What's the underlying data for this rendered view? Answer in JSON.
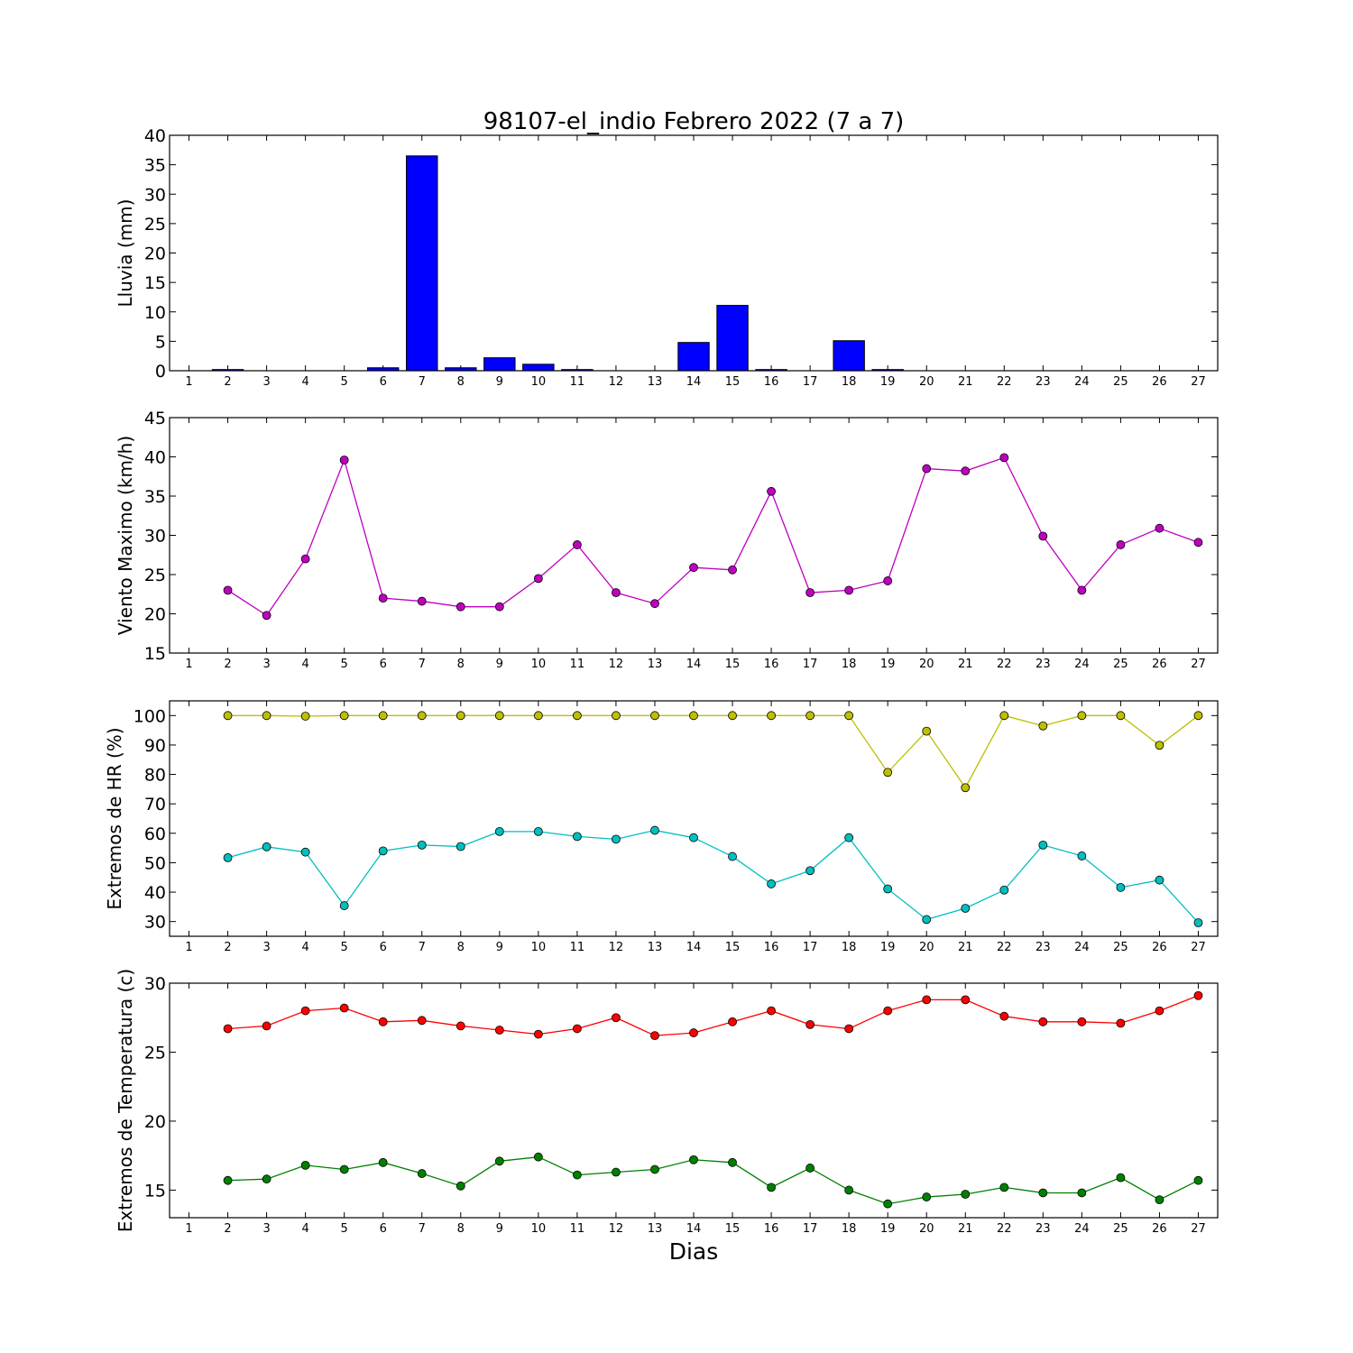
{
  "figure": {
    "title": "98107-el_indio Febrero 2022  (7 a 7)",
    "xlabel": "Dias"
  },
  "chart_data": [
    {
      "type": "bar",
      "ylabel": "Lluvia (mm)",
      "ylim": [
        0,
        40
      ],
      "yticks": [
        0,
        5,
        10,
        15,
        20,
        25,
        30,
        35,
        40
      ],
      "xlim": [
        0.5,
        27.5
      ],
      "xticks": [
        1,
        2,
        3,
        4,
        5,
        6,
        7,
        8,
        9,
        10,
        11,
        12,
        13,
        14,
        15,
        16,
        17,
        18,
        19,
        20,
        21,
        22,
        23,
        24,
        25,
        26,
        27
      ],
      "series": [
        {
          "color": "#0000ff",
          "x": [
            2,
            3,
            4,
            5,
            6,
            7,
            8,
            9,
            10,
            11,
            12,
            13,
            14,
            15,
            16,
            17,
            18,
            19,
            20,
            21,
            22,
            23,
            24,
            25,
            26,
            27
          ],
          "values": [
            0.2,
            0,
            0,
            0,
            0.5,
            36.5,
            0.5,
            2.2,
            1.1,
            0.2,
            0,
            0,
            4.8,
            11.1,
            0.2,
            0,
            5.1,
            0.2,
            0,
            0,
            0,
            0,
            0,
            0,
            0,
            0
          ]
        }
      ]
    },
    {
      "type": "line",
      "ylabel": "Viento Maximo (km/h)",
      "ylim": [
        15,
        45
      ],
      "yticks": [
        15,
        20,
        25,
        30,
        35,
        40,
        45
      ],
      "xlim": [
        0.5,
        27.5
      ],
      "xticks": [
        1,
        2,
        3,
        4,
        5,
        6,
        7,
        8,
        9,
        10,
        11,
        12,
        13,
        14,
        15,
        16,
        17,
        18,
        19,
        20,
        21,
        22,
        23,
        24,
        25,
        26,
        27
      ],
      "series": [
        {
          "color": "#bf00bf",
          "x": [
            2,
            3,
            4,
            5,
            6,
            7,
            8,
            9,
            10,
            11,
            12,
            13,
            14,
            15,
            16,
            17,
            18,
            19,
            20,
            21,
            22,
            23,
            24,
            25,
            26,
            27
          ],
          "values": [
            23.0,
            19.8,
            27.0,
            39.6,
            22.0,
            21.6,
            20.9,
            20.9,
            24.5,
            28.8,
            22.7,
            21.3,
            25.9,
            25.6,
            35.6,
            22.7,
            23.0,
            24.2,
            38.5,
            38.2,
            39.9,
            29.9,
            23.0,
            28.8,
            30.9,
            29.1
          ]
        }
      ]
    },
    {
      "type": "line",
      "ylabel": "Extremos de HR (%)",
      "ylim": [
        25,
        105
      ],
      "yticks": [
        30,
        40,
        50,
        60,
        70,
        80,
        90,
        100
      ],
      "xlim": [
        0.5,
        27.5
      ],
      "xticks": [
        1,
        2,
        3,
        4,
        5,
        6,
        7,
        8,
        9,
        10,
        11,
        12,
        13,
        14,
        15,
        16,
        17,
        18,
        19,
        20,
        21,
        22,
        23,
        24,
        25,
        26,
        27
      ],
      "series": [
        {
          "color": "#bfbf00",
          "x": [
            2,
            3,
            4,
            5,
            6,
            7,
            8,
            9,
            10,
            11,
            12,
            13,
            14,
            15,
            16,
            17,
            18,
            19,
            20,
            21,
            22,
            23,
            24,
            25,
            26,
            27
          ],
          "values": [
            100,
            100,
            99.8,
            100,
            100,
            100,
            100,
            100,
            100,
            100,
            100,
            100,
            100,
            100,
            100,
            100,
            100,
            80.7,
            94.7,
            75.5,
            100,
            96.5,
            100,
            100,
            89.9,
            100
          ]
        },
        {
          "color": "#00bfbf",
          "x": [
            2,
            3,
            4,
            5,
            6,
            7,
            8,
            9,
            10,
            11,
            12,
            13,
            14,
            15,
            16,
            17,
            18,
            19,
            20,
            21,
            22,
            23,
            24,
            25,
            26,
            27
          ],
          "values": [
            51.7,
            55.4,
            53.6,
            35.4,
            54.0,
            56.0,
            55.5,
            60.6,
            60.6,
            58.9,
            58.0,
            61.0,
            58.5,
            52.1,
            42.8,
            47.3,
            58.5,
            41.1,
            30.7,
            34.5,
            40.7,
            56.0,
            52.3,
            41.6,
            44.1,
            29.6
          ]
        }
      ]
    },
    {
      "type": "line",
      "ylabel": "Extremos de Temperatura (c)",
      "ylim": [
        13,
        30
      ],
      "yticks": [
        15,
        20,
        25,
        30
      ],
      "xlim": [
        0.5,
        27.5
      ],
      "xticks": [
        1,
        2,
        3,
        4,
        5,
        6,
        7,
        8,
        9,
        10,
        11,
        12,
        13,
        14,
        15,
        16,
        17,
        18,
        19,
        20,
        21,
        22,
        23,
        24,
        25,
        26,
        27
      ],
      "series": [
        {
          "color": "#ff0000",
          "x": [
            2,
            3,
            4,
            5,
            6,
            7,
            8,
            9,
            10,
            11,
            12,
            13,
            14,
            15,
            16,
            17,
            18,
            19,
            20,
            21,
            22,
            23,
            24,
            25,
            26,
            27
          ],
          "values": [
            26.7,
            26.9,
            28.0,
            28.2,
            27.2,
            27.3,
            26.9,
            26.6,
            26.3,
            26.7,
            27.5,
            26.2,
            26.4,
            27.2,
            28.0,
            27.0,
            26.7,
            28.0,
            28.8,
            28.8,
            27.6,
            27.2,
            27.2,
            27.1,
            28.0,
            29.1
          ]
        },
        {
          "color": "#008000",
          "x": [
            2,
            3,
            4,
            5,
            6,
            7,
            8,
            9,
            10,
            11,
            12,
            13,
            14,
            15,
            16,
            17,
            18,
            19,
            20,
            21,
            22,
            23,
            24,
            25,
            26,
            27
          ],
          "values": [
            15.7,
            15.8,
            16.8,
            16.5,
            17.0,
            16.2,
            15.3,
            17.1,
            17.4,
            16.1,
            16.3,
            16.5,
            17.2,
            17.0,
            15.2,
            16.6,
            15.0,
            14.0,
            14.5,
            14.7,
            15.2,
            14.8,
            14.8,
            15.9,
            14.3,
            15.7
          ]
        }
      ]
    }
  ]
}
